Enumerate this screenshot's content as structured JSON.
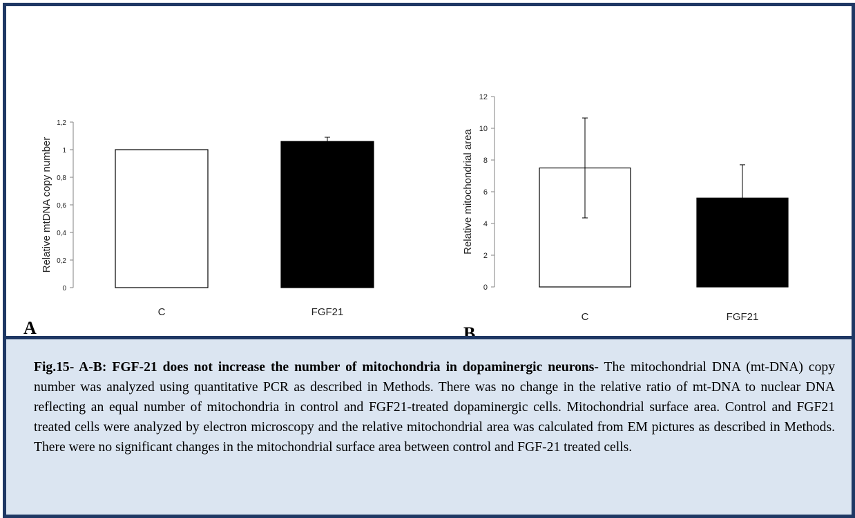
{
  "chart_data": [
    {
      "type": "bar",
      "panel_label": "A",
      "categories": [
        "C",
        "FGF21"
      ],
      "values": [
        1.0,
        1.06
      ],
      "errors": [
        0,
        0.03
      ],
      "colors": [
        "#ffffff",
        "#000000"
      ],
      "ylabel": "Relative mtDNA copy number",
      "ylim": [
        0,
        1.2
      ],
      "yticks": [
        "0",
        "0,2",
        "0,4",
        "0,6",
        "0,8",
        "1",
        "1,2"
      ],
      "grid": false
    },
    {
      "type": "bar",
      "panel_label": "B",
      "categories": [
        "C",
        "FGF21"
      ],
      "values": [
        7.5,
        5.6
      ],
      "errors": [
        3.15,
        2.1
      ],
      "colors": [
        "#ffffff",
        "#000000"
      ],
      "ylabel": "Relative mitochondrial area",
      "ylim": [
        0,
        12
      ],
      "yticks": [
        "0",
        "2",
        "4",
        "6",
        "8",
        "10",
        "12"
      ],
      "grid": false
    }
  ],
  "caption": {
    "title": "Fig.15- A-B: FGF-21 does not increase the number of mitochondria in dopaminergic neurons-",
    "body": " The mitochondrial DNA (mt-DNA) copy number was analyzed using quantitative PCR as described in Methods. There was no change in the relative ratio of mt-DNA to nuclear DNA reflecting an equal number of mitochondria in control and FGF21-treated dopaminergic cells.  Mitochondrial surface area. Control and FGF21 treated cells were analyzed by electron microscopy and the relative mitochondrial area was calculated from EM pictures as described in Methods. There were no significant changes in the mitochondrial surface area between control and FGF-21 treated cells."
  },
  "colors": {
    "frame": "#1f3864",
    "caption_bg": "#dbe5f1"
  }
}
